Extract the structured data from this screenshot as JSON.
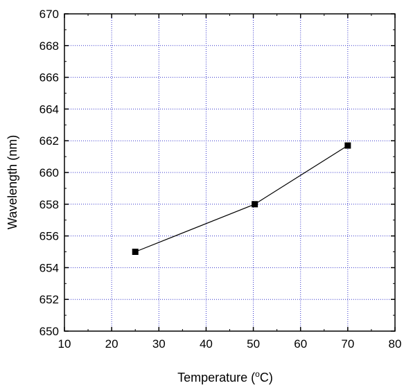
{
  "chart_data": {
    "type": "line",
    "title": "",
    "xlabel": "Temperature (°C)",
    "xlabel_parts": {
      "prefix": "Temperature (",
      "superscript": "o",
      "suffix": "C)"
    },
    "ylabel": "Wavelength (nm)",
    "xlim": [
      10,
      80
    ],
    "ylim": [
      650,
      670
    ],
    "xticks": [
      10,
      20,
      30,
      40,
      50,
      60,
      70,
      80
    ],
    "yticks": [
      650,
      652,
      654,
      656,
      658,
      660,
      662,
      664,
      666,
      668,
      670
    ],
    "grid": true,
    "legend": "none",
    "series": [
      {
        "x": [
          25,
          50.3,
          70
        ],
        "y": [
          655.0,
          658.0,
          661.7
        ],
        "marker": "square",
        "color": "#000000"
      }
    ]
  },
  "colors": {
    "grid": "#3333cc",
    "axis": "#000000",
    "line": "#000000",
    "marker": "#000000"
  }
}
